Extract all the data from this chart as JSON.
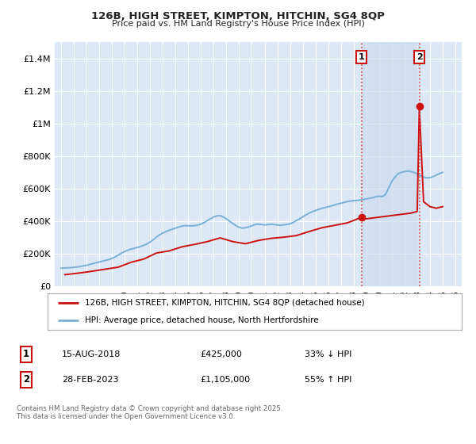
{
  "title_line1": "126B, HIGH STREET, KIMPTON, HITCHIN, SG4 8QP",
  "title_line2": "Price paid vs. HM Land Registry's House Price Index (HPI)",
  "background_color": "#ffffff",
  "plot_bg_color": "#dce8f5",
  "plot_bg_color2": "#c8d8ee",
  "grid_color": "#ffffff",
  "hpi_color": "#7ab0d4",
  "price_color": "#cc1111",
  "dashed_color": "#dd4444",
  "ylim": [
    0,
    1500000
  ],
  "yticks": [
    0,
    200000,
    400000,
    600000,
    800000,
    1000000,
    1200000,
    1400000
  ],
  "ytick_labels": [
    "£0",
    "£200K",
    "£400K",
    "£600K",
    "£800K",
    "£1M",
    "£1.2M",
    "£1.4M"
  ],
  "xlim_start": 1994.5,
  "xlim_end": 2026.5,
  "marker1_x": 2018.625,
  "marker1_y": 425000,
  "marker1_label": "1",
  "marker2_x": 2023.167,
  "marker2_y": 1105000,
  "marker2_label": "2",
  "vline1_x": 2018.625,
  "vline2_x": 2023.167,
  "legend_label_price": "126B, HIGH STREET, KIMPTON, HITCHIN, SG4 8QP (detached house)",
  "legend_label_hpi": "HPI: Average price, detached house, North Hertfordshire",
  "table_row1": [
    "1",
    "15-AUG-2018",
    "£425,000",
    "33% ↓ HPI"
  ],
  "table_row2": [
    "2",
    "28-FEB-2023",
    "£1,105,000",
    "55% ↑ HPI"
  ],
  "footnote": "Contains HM Land Registry data © Crown copyright and database right 2025.\nThis data is licensed under the Open Government Licence v3.0.",
  "hpi_data_x": [
    1995.0,
    1995.25,
    1995.5,
    1995.75,
    1996.0,
    1996.25,
    1996.5,
    1996.75,
    1997.0,
    1997.25,
    1997.5,
    1997.75,
    1998.0,
    1998.25,
    1998.5,
    1998.75,
    1999.0,
    1999.25,
    1999.5,
    1999.75,
    2000.0,
    2000.25,
    2000.5,
    2000.75,
    2001.0,
    2001.25,
    2001.5,
    2001.75,
    2002.0,
    2002.25,
    2002.5,
    2002.75,
    2003.0,
    2003.25,
    2003.5,
    2003.75,
    2004.0,
    2004.25,
    2004.5,
    2004.75,
    2005.0,
    2005.25,
    2005.5,
    2005.75,
    2006.0,
    2006.25,
    2006.5,
    2006.75,
    2007.0,
    2007.25,
    2007.5,
    2007.75,
    2008.0,
    2008.25,
    2008.5,
    2008.75,
    2009.0,
    2009.25,
    2009.5,
    2009.75,
    2010.0,
    2010.25,
    2010.5,
    2010.75,
    2011.0,
    2011.25,
    2011.5,
    2011.75,
    2012.0,
    2012.25,
    2012.5,
    2012.75,
    2013.0,
    2013.25,
    2013.5,
    2013.75,
    2014.0,
    2014.25,
    2014.5,
    2014.75,
    2015.0,
    2015.25,
    2015.5,
    2015.75,
    2016.0,
    2016.25,
    2016.5,
    2016.75,
    2017.0,
    2017.25,
    2017.5,
    2017.75,
    2018.0,
    2018.25,
    2018.5,
    2018.75,
    2019.0,
    2019.25,
    2019.5,
    2019.75,
    2020.0,
    2020.25,
    2020.5,
    2020.75,
    2021.0,
    2021.25,
    2021.5,
    2021.75,
    2022.0,
    2022.25,
    2022.5,
    2022.75,
    2023.0,
    2023.25,
    2023.5,
    2023.75,
    2024.0,
    2024.25,
    2024.5,
    2024.75,
    2025.0
  ],
  "hpi_data_y": [
    112000,
    113000,
    114000,
    115000,
    117000,
    119000,
    122000,
    126000,
    130000,
    135000,
    140000,
    145000,
    150000,
    155000,
    160000,
    165000,
    172000,
    181000,
    192000,
    204000,
    214000,
    222000,
    229000,
    234000,
    239000,
    245000,
    252000,
    261000,
    272000,
    287000,
    303000,
    317000,
    328000,
    337000,
    345000,
    352000,
    358000,
    365000,
    370000,
    373000,
    372000,
    372000,
    373000,
    377000,
    383000,
    392000,
    404000,
    416000,
    426000,
    433000,
    434000,
    427000,
    415000,
    400000,
    386000,
    373000,
    363000,
    358000,
    360000,
    365000,
    372000,
    380000,
    382000,
    380000,
    377000,
    380000,
    382000,
    380000,
    377000,
    375000,
    378000,
    381000,
    384000,
    393000,
    404000,
    415000,
    427000,
    439000,
    450000,
    459000,
    466000,
    473000,
    479000,
    484000,
    489000,
    494000,
    500000,
    506000,
    511000,
    516000,
    521000,
    524000,
    526000,
    528000,
    530000,
    533000,
    537000,
    541000,
    545000,
    551000,
    554000,
    551000,
    564000,
    604000,
    644000,
    672000,
    692000,
    700000,
    705000,
    708000,
    706000,
    700000,
    690000,
    680000,
    671000,
    666000,
    668000,
    674000,
    683000,
    693000,
    700000
  ],
  "price_data_x": [
    1995.3,
    1996.0,
    1997.0,
    1998.0,
    1999.5,
    2000.5,
    2001.5,
    2002.5,
    2003.5,
    2004.5,
    2005.5,
    2006.5,
    2007.5,
    2008.5,
    2009.5,
    2010.5,
    2011.5,
    2012.5,
    2013.5,
    2014.5,
    2015.5,
    2016.5,
    2017.5,
    2018.0,
    2018.625,
    2019.0,
    2019.5,
    2020.0,
    2020.5,
    2021.0,
    2021.5,
    2022.0,
    2022.5,
    2023.0,
    2023.167,
    2023.5,
    2024.0,
    2024.5,
    2025.0
  ],
  "price_data_y": [
    72000,
    78000,
    88000,
    100000,
    118000,
    148000,
    168000,
    205000,
    218000,
    243000,
    258000,
    275000,
    298000,
    275000,
    262000,
    282000,
    295000,
    302000,
    312000,
    337000,
    360000,
    375000,
    390000,
    405000,
    425000,
    415000,
    420000,
    425000,
    430000,
    435000,
    440000,
    445000,
    450000,
    460000,
    1105000,
    520000,
    490000,
    480000,
    490000
  ]
}
